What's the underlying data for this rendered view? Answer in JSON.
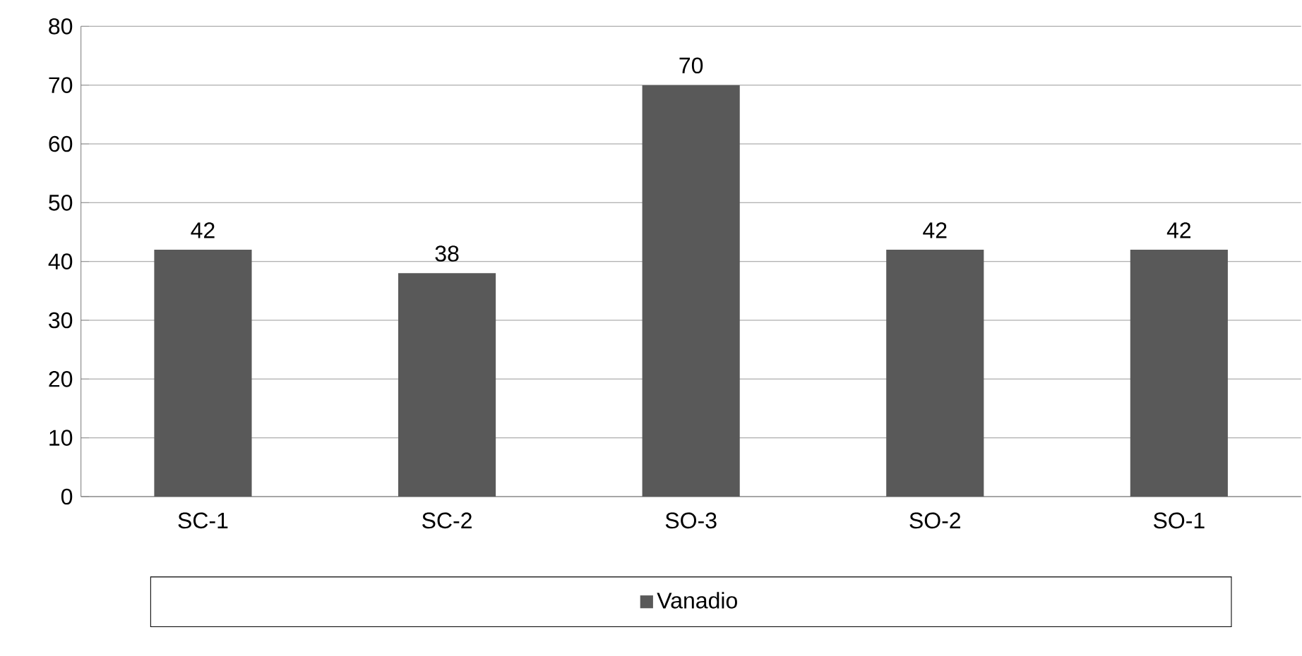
{
  "chart_data": {
    "type": "bar",
    "categories": [
      "SC-1",
      "SC-2",
      "SO-3",
      "SO-2",
      "SO-1"
    ],
    "series": [
      {
        "name": "Vanadio",
        "color": "#595959",
        "values": [
          42,
          38,
          70,
          42,
          42
        ]
      }
    ],
    "ylim": [
      0,
      80
    ],
    "yticks": [
      0,
      10,
      20,
      30,
      40,
      50,
      60,
      70,
      80
    ],
    "grid": "y",
    "legend": "bottom",
    "data_labels": true
  }
}
